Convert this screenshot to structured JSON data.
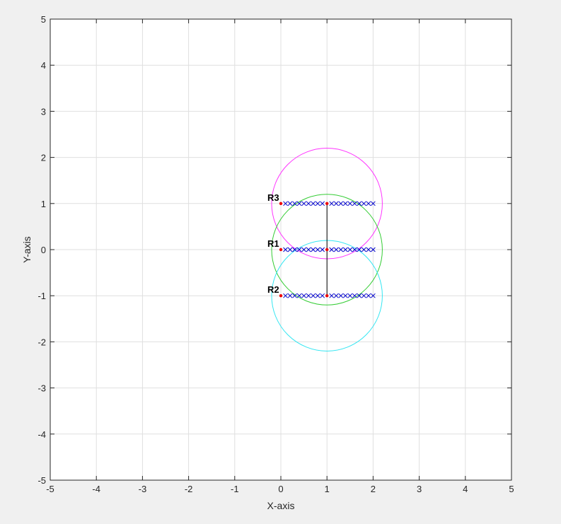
{
  "chart_data": {
    "type": "scatter",
    "xlabel": "X-axis",
    "ylabel": "Y-axis",
    "xlim": [
      -5,
      5
    ],
    "ylim": [
      -5,
      5
    ],
    "grid": true,
    "x_ticks": [
      "-5",
      "-4",
      "-3",
      "-2",
      "-1",
      "0",
      "1",
      "2",
      "3",
      "4",
      "5"
    ],
    "y_ticks": [
      "-5",
      "-4",
      "-3",
      "-2",
      "-1",
      "0",
      "1",
      "2",
      "3",
      "4",
      "5"
    ],
    "circles": [
      {
        "center": [
          1,
          1
        ],
        "radius": 1.2,
        "color": "#ff33ff"
      },
      {
        "center": [
          1,
          0
        ],
        "radius": 1.2,
        "color": "#33cc33"
      },
      {
        "center": [
          1,
          -1
        ],
        "radius": 1.2,
        "color": "#33e6f2"
      }
    ],
    "segment": {
      "x": [
        1,
        1
      ],
      "y": [
        1,
        -1
      ],
      "color": "#000000"
    },
    "point_rows": [
      {
        "y": 1,
        "x": [
          0.1,
          0.2,
          0.3,
          0.4,
          0.5,
          0.6,
          0.7,
          0.8,
          0.9,
          1.1,
          1.2,
          1.3,
          1.4,
          1.5,
          1.6,
          1.7,
          1.8,
          1.9,
          2.0
        ]
      },
      {
        "y": 0,
        "x": [
          0.1,
          0.2,
          0.3,
          0.4,
          0.5,
          0.6,
          0.7,
          0.8,
          0.9,
          1.1,
          1.2,
          1.3,
          1.4,
          1.5,
          1.6,
          1.7,
          1.8,
          1.9,
          2.0
        ]
      },
      {
        "y": -1,
        "x": [
          0.1,
          0.2,
          0.3,
          0.4,
          0.5,
          0.6,
          0.7,
          0.8,
          0.9,
          1.1,
          1.2,
          1.3,
          1.4,
          1.5,
          1.6,
          1.7,
          1.8,
          1.9,
          2.0
        ]
      }
    ],
    "cross_color": "#0000cc",
    "red_points": [
      {
        "x": 0,
        "y": 1
      },
      {
        "x": 1,
        "y": 1
      },
      {
        "x": 0,
        "y": 0
      },
      {
        "x": 1,
        "y": 0
      },
      {
        "x": 0,
        "y": -1
      },
      {
        "x": 1,
        "y": -1
      }
    ],
    "red_color": "#ee0000",
    "labels": [
      {
        "text": "R3",
        "x": 0,
        "y": 1
      },
      {
        "text": "R1",
        "x": 0,
        "y": 0
      },
      {
        "text": "R2",
        "x": 0,
        "y": -1
      }
    ]
  }
}
